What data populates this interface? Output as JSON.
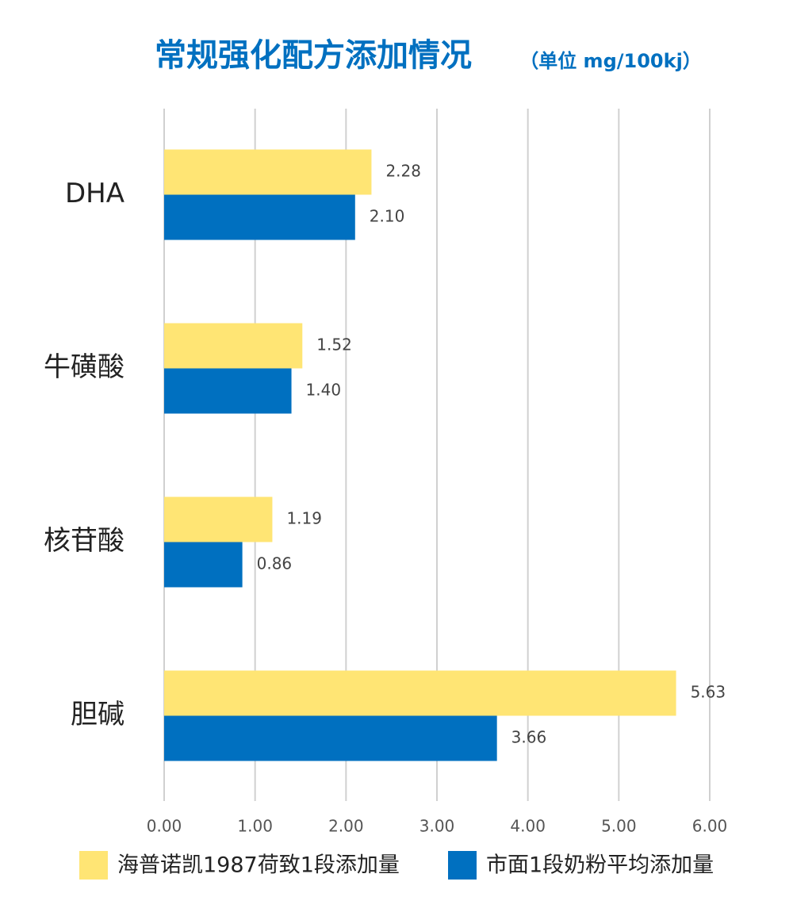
{
  "chart_data": {
    "type": "bar",
    "orientation": "horizontal",
    "title": "常规强化配方添加情况",
    "subtitle": "（单位 mg/100kj）",
    "categories": [
      "DHA",
      "牛磺酸",
      "核苷酸",
      "胆碱"
    ],
    "series": [
      {
        "name": "海普诺凯1987荷致1段添加量",
        "color": "#ffe574",
        "values": [
          2.28,
          1.52,
          1.19,
          5.63
        ],
        "value_labels": [
          "2.28",
          "1.52",
          "1.19",
          "5.63"
        ]
      },
      {
        "name": "市面1段奶粉平均添加量",
        "color": "#0070c0",
        "values": [
          2.1,
          1.4,
          0.86,
          3.66
        ],
        "value_labels": [
          "2.10",
          "1.40",
          "0.86",
          "3.66"
        ]
      }
    ],
    "xlim": [
      0,
      6
    ],
    "xticks": [
      {
        "value": 0,
        "label": "0.00"
      },
      {
        "value": 1,
        "label": "1.00"
      },
      {
        "value": 2,
        "label": "2.00"
      },
      {
        "value": 3,
        "label": "3.00"
      },
      {
        "value": 4,
        "label": "4.00"
      },
      {
        "value": 5,
        "label": "5.00"
      },
      {
        "value": 6,
        "label": "6.00"
      }
    ],
    "grid": true,
    "legend": "bottom"
  }
}
